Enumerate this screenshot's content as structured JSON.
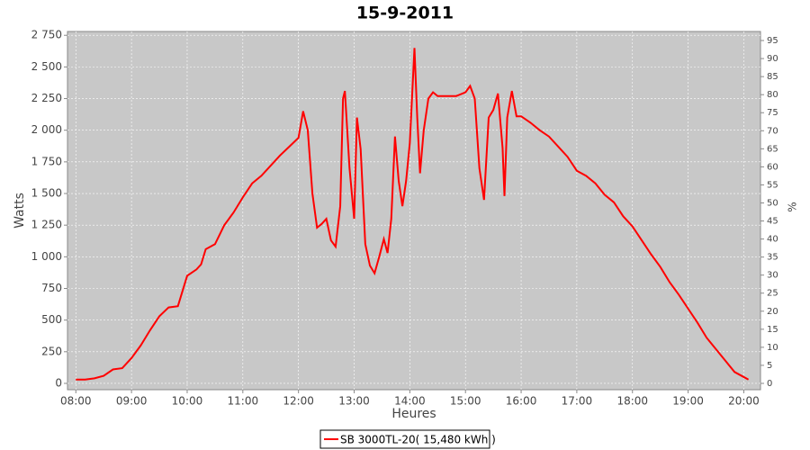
{
  "chart_data": {
    "type": "line",
    "title": "15-9-2011",
    "x_label": "Heures",
    "y_label": "Watts",
    "y2_label": "%",
    "x": [
      "08:00",
      "08:10",
      "08:20",
      "08:30",
      "08:40",
      "08:50",
      "09:00",
      "09:10",
      "09:20",
      "09:30",
      "09:40",
      "09:50",
      "10:00",
      "10:10",
      "10:15",
      "10:20",
      "10:30",
      "10:40",
      "10:50",
      "11:00",
      "11:10",
      "11:20",
      "11:30",
      "11:40",
      "11:50",
      "12:00",
      "12:05",
      "12:10",
      "12:15",
      "12:20",
      "12:25",
      "12:30",
      "12:35",
      "12:40",
      "12:45",
      "12:48",
      "12:50",
      "12:55",
      "13:00",
      "13:03",
      "13:07",
      "13:12",
      "13:17",
      "13:22",
      "13:27",
      "13:32",
      "13:36",
      "13:40",
      "13:44",
      "13:48",
      "13:52",
      "13:56",
      "14:00",
      "14:05",
      "14:08",
      "14:11",
      "14:15",
      "14:20",
      "14:25",
      "14:30",
      "14:40",
      "14:50",
      "15:00",
      "15:05",
      "15:10",
      "15:15",
      "15:20",
      "15:25",
      "15:30",
      "15:35",
      "15:40",
      "15:42",
      "15:45",
      "15:50",
      "15:55",
      "16:00",
      "16:10",
      "16:20",
      "16:30",
      "16:40",
      "16:50",
      "17:00",
      "17:10",
      "17:20",
      "17:30",
      "17:40",
      "17:50",
      "18:00",
      "18:10",
      "18:20",
      "18:30",
      "18:40",
      "18:50",
      "19:00",
      "19:10",
      "19:20",
      "19:30",
      "19:40",
      "19:50",
      "20:00",
      "20:05"
    ],
    "series": [
      {
        "name": "SB 3000TL-20( 15,480 kWh  )",
        "color": "#ff0000",
        "values": [
          30,
          30,
          40,
          60,
          110,
          120,
          200,
          300,
          420,
          530,
          600,
          610,
          850,
          900,
          940,
          1060,
          1100,
          1250,
          1350,
          1470,
          1580,
          1640,
          1720,
          1800,
          1870,
          1940,
          2150,
          2000,
          1500,
          1230,
          1260,
          1300,
          1130,
          1080,
          1400,
          2250,
          2310,
          1700,
          1300,
          2100,
          1850,
          1100,
          930,
          870,
          1000,
          1140,
          1030,
          1300,
          1950,
          1600,
          1400,
          1600,
          1900,
          2650,
          2100,
          1660,
          2000,
          2250,
          2300,
          2270,
          2270,
          2270,
          2300,
          2350,
          2250,
          1700,
          1450,
          2100,
          2160,
          2290,
          1860,
          1480,
          2100,
          2310,
          2110,
          2110,
          2060,
          2000,
          1950,
          1870,
          1790,
          1680,
          1640,
          1580,
          1490,
          1430,
          1320,
          1240,
          1130,
          1020,
          920,
          800,
          700,
          590,
          480,
          360,
          270,
          180,
          90,
          50,
          30
        ]
      }
    ],
    "xlim": [
      "07:51",
      "20:18"
    ],
    "xticks": [
      "08:00",
      "09:00",
      "10:00",
      "11:00",
      "12:00",
      "13:00",
      "14:00",
      "15:00",
      "16:00",
      "17:00",
      "18:00",
      "19:00",
      "20:00"
    ],
    "ylim": [
      -50,
      2780
    ],
    "yticks": [
      0,
      250,
      500,
      750,
      {
        "value": 1000,
        "label": "1 000"
      },
      {
        "value": 1250,
        "label": "1 250"
      },
      {
        "value": 1500,
        "label": "1 500"
      },
      {
        "value": 1750,
        "label": "1 750"
      },
      {
        "value": 2000,
        "label": "2 000"
      },
      {
        "value": 2250,
        "label": "2 250"
      },
      {
        "value": 2500,
        "label": "2 500"
      },
      {
        "value": 2750,
        "label": "2 750"
      }
    ],
    "y2lim": [
      -1.75,
      97.5
    ],
    "y2ticks": [
      0,
      5,
      10,
      15,
      20,
      25,
      30,
      35,
      40,
      45,
      50,
      55,
      60,
      65,
      70,
      75,
      80,
      85,
      90,
      95
    ],
    "grid": true,
    "plot_background": "#c8c8c8",
    "legend": "bottom"
  }
}
